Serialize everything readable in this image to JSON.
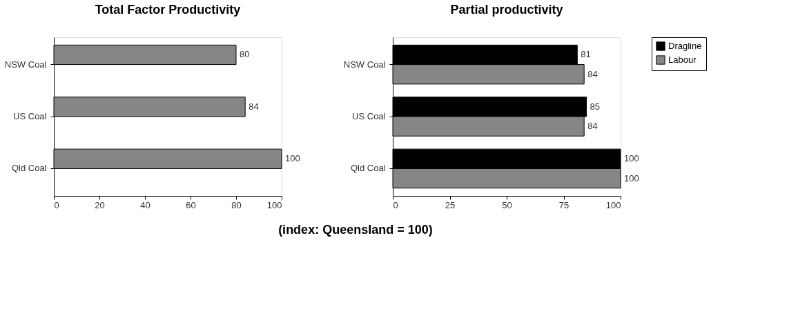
{
  "chart_data": [
    {
      "type": "bar",
      "orientation": "horizontal",
      "title": "Total Factor Productivity",
      "categories": [
        "NSW Coal",
        "US Coal",
        "Qld Coal"
      ],
      "values": [
        80,
        84,
        100
      ],
      "color": "#868686",
      "xlim": [
        0,
        100
      ],
      "xticks": [
        0,
        20,
        40,
        60,
        80,
        100
      ],
      "data_labels": true,
      "annotations": [
        "(index: Queensland = 100)"
      ]
    },
    {
      "type": "bar",
      "orientation": "horizontal",
      "title": "Partial productivity",
      "categories": [
        "NSW Coal",
        "US Coal",
        "Qld Coal"
      ],
      "series": [
        {
          "name": "Dragline",
          "color": "#000000",
          "values": [
            81,
            85,
            100
          ]
        },
        {
          "name": "Labour",
          "color": "#868686",
          "values": [
            84,
            84,
            100
          ]
        }
      ],
      "xlim": [
        0,
        100
      ],
      "xticks": [
        0,
        25,
        50,
        75,
        100
      ],
      "data_labels": true,
      "legend": "top right"
    }
  ]
}
